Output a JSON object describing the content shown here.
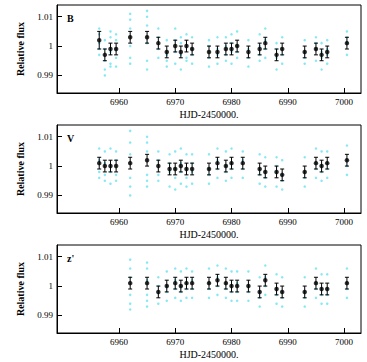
{
  "chart_data": [
    {
      "type": "scatter",
      "title": "B",
      "x_label": "HJD-2450000.",
      "y_label": "Relative flux",
      "xlim": [
        6949,
        7003
      ],
      "xticks": [
        6960,
        6970,
        6980,
        6990,
        7000
      ],
      "ylim": [
        0.984,
        1.014
      ],
      "yticks": [
        0.99,
        1,
        1.01
      ],
      "series": [
        {
          "type": "scatter",
          "color": "#66e3f0",
          "marker": "dot",
          "x": [
            6956.5,
            6957.5,
            6958.5,
            6959.5,
            6962,
            6965,
            6967,
            6968.5,
            6970,
            6971,
            6972,
            6973,
            6976,
            6977.5,
            6979,
            6980,
            6981,
            6983,
            6985,
            6986,
            6988,
            6989,
            6993,
            6995,
            6996,
            6997,
            7000.5
          ],
          "values": [
            [
              1.006,
              0.999,
              1.004,
              0.997,
              1.001
            ],
            [
              0.992,
              1.002,
              0.995,
              0.999,
              0.99
            ],
            [
              0.994,
              1.003,
              0.998,
              1.005,
              0.993
            ],
            [
              0.993,
              1.004,
              0.999,
              0.996,
              1.002
            ],
            [
              1.009,
              0.996,
              1.006,
              1.0,
              0.994,
              1.011
            ],
            [
              1.012,
              0.995,
              1.007,
              1.001,
              0.992,
              1.01
            ],
            [
              1.006,
              0.996,
              1.003,
              0.999
            ],
            [
              0.993,
              1.002,
              0.997,
              0.995
            ],
            [
              1.006,
              0.994,
              1.002,
              0.998
            ],
            [
              0.992,
              1.003,
              0.997,
              1.001
            ],
            [
              0.995,
              1.004,
              1.0,
              0.996
            ],
            [
              0.994,
              1.003,
              0.999,
              0.997
            ],
            [
              0.993,
              1.002,
              0.996,
              1.0
            ],
            [
              0.994,
              1.003,
              0.997,
              0.999
            ],
            [
              0.995,
              1.003,
              1.0,
              0.997
            ],
            [
              0.994,
              1.004,
              0.998,
              1.001
            ],
            [
              0.996,
              1.005,
              1.0,
              0.998
            ],
            [
              0.993,
              1.002,
              0.999,
              0.996
            ],
            [
              0.995,
              1.004,
              1.0,
              0.997
            ],
            [
              0.996,
              1.006,
              1.002,
              0.999
            ],
            [
              0.992,
              1.001,
              0.996,
              0.999
            ],
            [
              0.994,
              1.003,
              0.999,
              0.997
            ],
            [
              0.994,
              1.002,
              0.998,
              0.996
            ],
            [
              0.995,
              1.003,
              0.999,
              1.001
            ],
            [
              0.992,
              1.001,
              0.996,
              0.998
            ],
            [
              0.994,
              1.002,
              0.997,
              0.999
            ],
            [
              0.997,
              1.005,
              1.001,
              1.003
            ]
          ]
        },
        {
          "type": "errorbar",
          "color": "#000000",
          "marker": "circle",
          "x": [
            6956.5,
            6957.5,
            6958.5,
            6959.5,
            6962,
            6965,
            6967,
            6968.5,
            6970,
            6971,
            6972,
            6973,
            6976,
            6977.5,
            6979,
            6980,
            6981,
            6983,
            6985,
            6986,
            6988,
            6989,
            6993,
            6995,
            6996,
            6997,
            7000.5
          ],
          "values": [
            1.002,
            0.997,
            0.999,
            0.999,
            1.003,
            1.003,
            1.001,
            0.998,
            1.0,
            0.998,
            1.0,
            0.999,
            0.998,
            0.998,
            0.999,
            0.999,
            1.0,
            0.998,
            0.999,
            1.001,
            0.997,
            0.999,
            0.998,
            0.999,
            0.997,
            0.998,
            1.001
          ],
          "errors": [
            0.003,
            0.002,
            0.002,
            0.002,
            0.002,
            0.002,
            0.002,
            0.002,
            0.002,
            0.002,
            0.002,
            0.002,
            0.002,
            0.002,
            0.002,
            0.002,
            0.002,
            0.002,
            0.002,
            0.002,
            0.002,
            0.002,
            0.002,
            0.002,
            0.002,
            0.002,
            0.002
          ]
        }
      ]
    },
    {
      "type": "scatter",
      "title": "V",
      "x_label": "HJD-2450000.",
      "y_label": "Relative flux",
      "xlim": [
        6949,
        7003
      ],
      "xticks": [
        6960,
        6970,
        6980,
        6990,
        7000
      ],
      "ylim": [
        0.984,
        1.014
      ],
      "yticks": [
        0.99,
        1,
        1.01
      ],
      "series": [
        {
          "type": "scatter",
          "color": "#66e3f0",
          "marker": "dot",
          "x": [
            6956.5,
            6957.5,
            6958.5,
            6959.5,
            6962,
            6965,
            6967,
            6969,
            6970,
            6971,
            6972,
            6973,
            6976,
            6977.5,
            6979,
            6980,
            6982,
            6985,
            6986,
            6988,
            6989,
            6993,
            6995,
            6996,
            6997,
            7000.5
          ],
          "values": [
            [
              0.996,
              1.006,
              1.002,
              0.998
            ],
            [
              0.995,
              1.005,
              1.001,
              0.997
            ],
            [
              0.994,
              1.006,
              1.0,
              0.998
            ],
            [
              0.995,
              1.005,
              1.002,
              0.997
            ],
            [
              0.99,
              1.012,
              1.004,
              0.996,
              1.008,
              0.993
            ],
            [
              0.993,
              1.01,
              1.005,
              0.997,
              1.008,
              0.995
            ],
            [
              0.995,
              1.005,
              1.002,
              0.997
            ],
            [
              0.993,
              1.004,
              0.998,
              1.001
            ],
            [
              0.992,
              1.005,
              0.999,
              0.996
            ],
            [
              0.994,
              1.006,
              1.001,
              0.998
            ],
            [
              0.993,
              1.004,
              0.999,
              0.996
            ],
            [
              0.994,
              1.004,
              0.998,
              1.001
            ],
            [
              0.994,
              1.004,
              0.999,
              0.997
            ],
            [
              0.996,
              1.006,
              1.002,
              0.999
            ],
            [
              0.995,
              1.005,
              1.0,
              0.998
            ],
            [
              0.996,
              1.006,
              1.001,
              0.999
            ],
            [
              0.996,
              1.005,
              1.002,
              0.999
            ],
            [
              0.994,
              1.004,
              0.999,
              0.997
            ],
            [
              0.993,
              1.003,
              0.998,
              0.996
            ],
            [
              0.993,
              1.003,
              0.998,
              1.0
            ],
            [
              0.992,
              1.002,
              0.997,
              0.995
            ],
            [
              0.993,
              1.003,
              0.998,
              0.996
            ],
            [
              0.996,
              1.006,
              1.001,
              0.999
            ],
            [
              0.995,
              1.005,
              1.0,
              0.998
            ],
            [
              0.996,
              1.005,
              1.001,
              0.999
            ],
            [
              0.997,
              1.007,
              1.002,
              1.0
            ]
          ]
        },
        {
          "type": "errorbar",
          "color": "#000000",
          "marker": "circle",
          "x": [
            6956.5,
            6957.5,
            6958.5,
            6959.5,
            6962,
            6965,
            6967,
            6969,
            6970,
            6971,
            6972,
            6973,
            6976,
            6977.5,
            6979,
            6980,
            6982,
            6985,
            6986,
            6988,
            6989,
            6993,
            6995,
            6996,
            6997,
            7000.5
          ],
          "values": [
            1.001,
            1.0,
            1.0,
            1.0,
            1.001,
            1.002,
            1.0,
            0.999,
            0.999,
            1.0,
            0.999,
            0.999,
            0.999,
            1.001,
            1.0,
            1.001,
            1.001,
            0.999,
            0.998,
            0.998,
            0.997,
            0.998,
            1.001,
            1.0,
            1.001,
            1.002
          ],
          "errors": [
            0.002,
            0.002,
            0.002,
            0.002,
            0.002,
            0.002,
            0.002,
            0.002,
            0.002,
            0.002,
            0.002,
            0.002,
            0.002,
            0.002,
            0.002,
            0.002,
            0.002,
            0.002,
            0.002,
            0.002,
            0.002,
            0.002,
            0.002,
            0.002,
            0.002,
            0.002
          ]
        }
      ]
    },
    {
      "type": "scatter",
      "title": "z'",
      "x_label": "HJD-2450000.",
      "y_label": "Relative flux",
      "xlim": [
        6949,
        7003
      ],
      "xticks": [
        6960,
        6970,
        6980,
        6990,
        7000
      ],
      "ylim": [
        0.984,
        1.014
      ],
      "yticks": [
        0.99,
        1,
        1.01
      ],
      "series": [
        {
          "type": "scatter",
          "color": "#66e3f0",
          "marker": "dot",
          "x": [
            6962,
            6965,
            6967,
            6968.5,
            6970,
            6971,
            6972,
            6973,
            6976,
            6977.5,
            6979,
            6980,
            6981,
            6983,
            6985,
            6986,
            6988,
            6989,
            6993,
            6995,
            6996,
            6997,
            7000.5
          ],
          "values": [
            [
              0.994,
              1.009,
              1.003,
              0.997,
              1.006,
              0.992
            ],
            [
              0.995,
              1.008,
              1.002,
              0.997,
              1.006,
              0.993
            ],
            [
              0.994,
              1.003,
              0.998,
              1.0
            ],
            [
              0.995,
              1.005,
              1.0,
              0.998
            ],
            [
              0.996,
              1.006,
              1.002,
              0.999
            ],
            [
              0.995,
              1.005,
              1.0,
              0.998
            ],
            [
              0.996,
              1.006,
              1.001,
              0.999
            ],
            [
              0.996,
              1.005,
              1.002,
              0.999
            ],
            [
              0.996,
              1.006,
              1.001,
              0.999
            ],
            [
              0.997,
              1.007,
              1.003,
              1.0
            ],
            [
              0.996,
              1.006,
              1.001,
              0.999
            ],
            [
              0.995,
              1.005,
              1.0,
              0.998
            ],
            [
              0.995,
              1.005,
              1.001,
              0.998
            ],
            [
              0.995,
              1.005,
              1.0,
              0.998
            ],
            [
              0.993,
              1.003,
              0.998,
              0.996
            ],
            [
              0.997,
              1.007,
              1.003,
              1.0
            ],
            [
              0.994,
              1.004,
              0.999,
              0.997
            ],
            [
              0.993,
              1.003,
              0.998,
              0.996
            ],
            [
              0.993,
              1.003,
              0.998,
              0.996
            ],
            [
              0.996,
              1.006,
              1.001,
              0.999
            ],
            [
              0.994,
              1.004,
              0.999,
              0.997
            ],
            [
              0.994,
              1.004,
              0.999,
              0.997
            ],
            [
              0.996,
              1.006,
              1.001,
              0.999
            ]
          ]
        },
        {
          "type": "errorbar",
          "color": "#000000",
          "marker": "circle",
          "x": [
            6962,
            6965,
            6967,
            6968.5,
            6970,
            6971,
            6972,
            6973,
            6976,
            6977.5,
            6979,
            6980,
            6981,
            6983,
            6985,
            6986,
            6988,
            6989,
            6993,
            6995,
            6996,
            6997,
            7000.5
          ],
          "values": [
            1.001,
            1.001,
            0.998,
            1.0,
            1.001,
            1.0,
            1.001,
            1.001,
            1.001,
            1.002,
            1.001,
            1.0,
            1.0,
            1.0,
            0.998,
            1.002,
            0.999,
            0.998,
            0.998,
            1.001,
            0.999,
            0.999,
            1.001
          ],
          "errors": [
            0.002,
            0.002,
            0.002,
            0.002,
            0.002,
            0.002,
            0.002,
            0.002,
            0.002,
            0.002,
            0.002,
            0.002,
            0.002,
            0.002,
            0.002,
            0.002,
            0.002,
            0.002,
            0.002,
            0.002,
            0.002,
            0.002,
            0.002
          ]
        }
      ]
    }
  ]
}
